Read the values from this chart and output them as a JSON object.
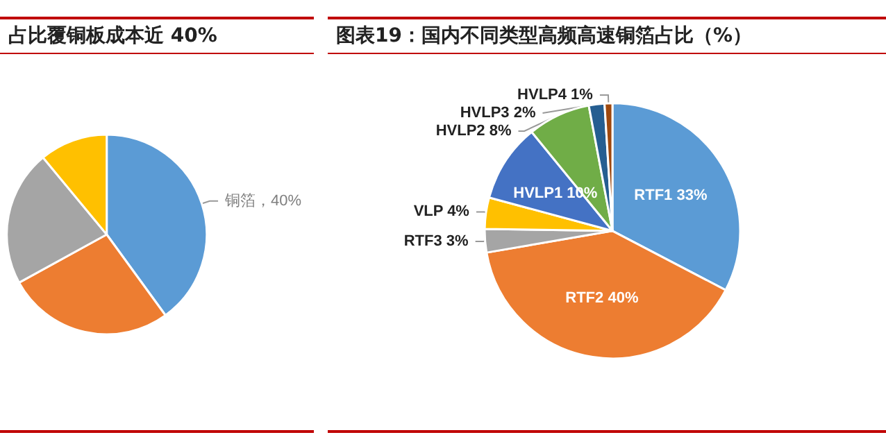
{
  "chart_data": [
    {
      "type": "pie",
      "title": "占比覆铜板成本近 40%",
      "categories": [
        "铜箔",
        null,
        null,
        null
      ],
      "values": [
        40,
        27,
        22,
        11
      ],
      "colors": [
        "#5b9bd5",
        "#ed7d31",
        "#a5a5a5",
        "#ffc000"
      ],
      "value_labels": [
        "40%",
        null,
        null,
        null
      ]
    },
    {
      "type": "pie",
      "title": "图表19：国内不同类型高频高速铜箔占比（%）",
      "categories": [
        "RTF1",
        "RTF2",
        "RTF3",
        "VLP",
        "HVLP1",
        "HVLP2",
        "HVLP3",
        "HVLP4"
      ],
      "values": [
        33,
        40,
        3,
        4,
        10,
        8,
        2,
        1
      ],
      "colors": [
        "#5b9bd5",
        "#ed7d31",
        "#a5a5a5",
        "#ffc000",
        "#4472c4",
        "#70ad47",
        "#255e91",
        "#9e480e"
      ],
      "value_labels": [
        "33%",
        "40%",
        "3%",
        "4%",
        "10%",
        "8%",
        "2%",
        "1%"
      ]
    }
  ]
}
